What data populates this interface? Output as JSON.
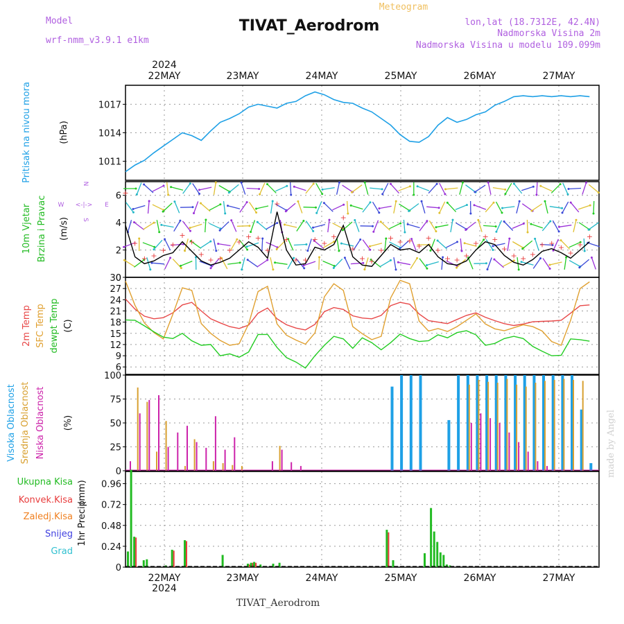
{
  "header": {
    "title": "TIVAT_Aerodrom",
    "meteogram": "Meteogram",
    "model_label": "Model",
    "model_name": "wrf-nmm_v3.9.1 e1km",
    "lonlat": "lon,lat (18.7312E, 42.4N)",
    "elevation": "Nadmorska Visina 2m",
    "model_elevation": "Nadmorska Visina u modelu 109.099m",
    "year_top": "2024",
    "year_bottom": "2024",
    "footer": "TIVAT_Aerodrom",
    "credit": "made by Angel"
  },
  "colors": {
    "pressure": "#1ea0e6",
    "wind_speed": "#000000",
    "gust": "#e83c3c",
    "temp2m": "#e84848",
    "sfc": "#e0a030",
    "dewpt": "#22cc22",
    "cloud_high": "#1ea0e6",
    "cloud_mid": "#d8a030",
    "cloud_low": "#cc22aa",
    "precip_total": "#22bb22",
    "precip_conv": "#e83c3c",
    "label_purple": "#b060e0",
    "label_green": "#22bb22",
    "label_red": "#e83c3c",
    "label_orange": "#f08020",
    "label_blue": "#4040e0",
    "label_cyan": "#30c0d0"
  },
  "dates": [
    "22MAY",
    "23MAY",
    "24MAY",
    "25MAY",
    "26MAY",
    "27MAY"
  ],
  "panel_labels": {
    "pressure": [
      "Pritisak na nivou mora",
      "(hPa)"
    ],
    "wind": [
      "10m Vjetar",
      "Brzina i Pravac",
      "(m/s)"
    ],
    "compass": [
      "N",
      "S",
      "W",
      "E",
      "<-|->"
    ],
    "temp": [
      "2m Temp",
      "SFC Temp",
      "dewpt Temp",
      "(C)"
    ],
    "cloud": [
      "Visoka Oblacnost",
      "Srednja Oblacnost",
      "Niska Oblacnost",
      "(%)"
    ],
    "precip_legend": [
      "Ukupna Kisa",
      "Konvek.Kisa",
      "Zaledj.Kisa",
      "Snijeg",
      "Grad"
    ],
    "precip_axis": [
      "1hr Precip",
      "(mm)"
    ]
  },
  "chart_data": [
    {
      "type": "line",
      "name": "pressure",
      "ylabel": "Pritisak na nivou mora (hPa)",
      "ylim": [
        1009,
        1019
      ],
      "yticks": [
        "1011",
        "1014",
        "1017"
      ],
      "x_hours": [
        0,
        3,
        6,
        9,
        12,
        15,
        18,
        21,
        24,
        27,
        30,
        33,
        36,
        39,
        42,
        45,
        48,
        51,
        54,
        57,
        60,
        63,
        66,
        69,
        72,
        75,
        78,
        81,
        84,
        87,
        90,
        93,
        96,
        99,
        102,
        105,
        108,
        111,
        114,
        117,
        120,
        123,
        126,
        129,
        132,
        135,
        138,
        141,
        144,
        147
      ],
      "series": [
        {
          "values": [
            1009.9,
            1010.6,
            1011.1,
            1011.9,
            1012.6,
            1013.3,
            1014.0,
            1013.7,
            1013.2,
            1014.2,
            1015.1,
            1015.5,
            1016.0,
            1016.7,
            1017.0,
            1016.8,
            1016.6,
            1017.1,
            1017.3,
            1017.9,
            1018.3,
            1018.0,
            1017.5,
            1017.2,
            1017.1,
            1016.6,
            1016.2,
            1015.5,
            1014.8,
            1013.8,
            1013.1,
            1013.0,
            1013.6,
            1014.8,
            1015.6,
            1015.1,
            1015.4,
            1015.9,
            1016.2,
            1016.9,
            1017.3,
            1017.8,
            1017.9,
            1017.8,
            1017.9,
            1017.8,
            1017.9,
            1017.8,
            1017.9,
            1017.8
          ]
        }
      ]
    },
    {
      "type": "line",
      "name": "wind",
      "ylabel": "10m Vjetar Brzina i Pravac (m/s)",
      "ylim": [
        0,
        7
      ],
      "yticks": [
        "0",
        "2",
        "4",
        "6"
      ],
      "x_hours": [
        0,
        3,
        6,
        9,
        12,
        15,
        18,
        21,
        24,
        27,
        30,
        33,
        36,
        39,
        42,
        45,
        48,
        51,
        54,
        57,
        60,
        63,
        66,
        69,
        72,
        75,
        78,
        81,
        84,
        87,
        90,
        93,
        96,
        99,
        102,
        105,
        108,
        111,
        114,
        117,
        120,
        123,
        126,
        129,
        132,
        135,
        138,
        141,
        144,
        147
      ],
      "series": [
        {
          "values": [
            3.8,
            1.5,
            1.0,
            1.2,
            1.6,
            1.8,
            2.6,
            1.9,
            1.2,
            0.9,
            1.1,
            1.4,
            2.0,
            2.6,
            2.2,
            1.4,
            4.8,
            2.0,
            0.9,
            1.0,
            2.2,
            2.0,
            2.4,
            3.8,
            1.5,
            0.9,
            0.8,
            1.6,
            2.4,
            2.0,
            2.1,
            1.8,
            2.4,
            1.5,
            1.0,
            0.9,
            1.2,
            2.0,
            2.6,
            2.4,
            1.6,
            1.1,
            0.9,
            1.3,
            1.9,
            2.1,
            1.8,
            1.4,
            2.0,
            2.6
          ]
        },
        {
          "values": [
            6.2,
            2.5,
            1.4,
            1.6,
            2.0,
            2.4,
            3.1,
            2.6,
            1.7,
            1.3,
            1.4,
            2.0,
            2.6,
            3.0,
            2.9,
            2.0,
            5.4,
            2.8,
            1.3,
            1.3,
            2.8,
            2.5,
            3.0,
            4.4,
            2.1,
            1.4,
            1.2,
            2.0,
            2.9,
            2.6,
            2.7,
            2.3,
            2.9,
            2.0,
            1.4,
            1.3,
            1.6,
            2.5,
            3.0,
            2.8,
            2.1,
            1.6,
            1.4,
            1.7,
            2.4,
            2.5,
            2.2,
            1.8,
            2.4,
            3.0
          ]
        }
      ]
    },
    {
      "type": "line",
      "name": "temperature",
      "ylabel": "Temp (C)",
      "ylim": [
        4,
        30
      ],
      "yticks": [
        "6",
        "9",
        "12",
        "15",
        "18",
        "21",
        "24",
        "27",
        "30"
      ],
      "x_hours": [
        0,
        3,
        6,
        9,
        12,
        15,
        18,
        21,
        24,
        27,
        30,
        33,
        36,
        39,
        42,
        45,
        48,
        51,
        54,
        57,
        60,
        63,
        66,
        69,
        72,
        75,
        78,
        81,
        84,
        87,
        90,
        93,
        96,
        99,
        102,
        105,
        108,
        111,
        114,
        117,
        120,
        123,
        126,
        129,
        132,
        135,
        138,
        141,
        144,
        147
      ],
      "series": [
        {
          "name": "2m Temp",
          "values": [
            24.2,
            21.5,
            19.6,
            18.9,
            19.2,
            20.5,
            22.6,
            23.3,
            21.0,
            18.9,
            17.8,
            16.8,
            16.3,
            17.2,
            20.4,
            21.8,
            18.9,
            17.3,
            16.4,
            15.9,
            17.4,
            20.8,
            21.9,
            21.4,
            19.7,
            19.1,
            18.9,
            19.8,
            22.4,
            23.3,
            22.8,
            20.2,
            18.4,
            18.0,
            17.6,
            18.7,
            19.8,
            20.5,
            19.3,
            18.4,
            17.6,
            17.1,
            17.5,
            18.1,
            18.2,
            18.3,
            18.5,
            20.4,
            22.4,
            22.6
          ]
        },
        {
          "name": "SFC Temp",
          "values": [
            29.0,
            22.5,
            17.8,
            15.2,
            13.5,
            20.1,
            27.2,
            26.5,
            17.6,
            15.0,
            13.1,
            11.8,
            12.2,
            17.5,
            26.2,
            27.6,
            17.5,
            14.5,
            13.2,
            12.1,
            15.1,
            24.8,
            28.3,
            26.5,
            16.8,
            14.9,
            13.3,
            14.2,
            24.5,
            29.2,
            28.3,
            18.3,
            15.6,
            16.3,
            15.5,
            16.8,
            18.5,
            20.2,
            17.5,
            16.2,
            15.7,
            16.5,
            17.3,
            16.8,
            15.6,
            12.8,
            11.8,
            18.5,
            27.0,
            28.8
          ]
        },
        {
          "name": "dewpt Temp",
          "values": [
            18.6,
            18.5,
            17.0,
            15.4,
            14.0,
            13.6,
            15.0,
            13.0,
            11.8,
            12.0,
            9.0,
            9.5,
            8.6,
            10.0,
            14.7,
            14.7,
            11.2,
            8.5,
            7.3,
            5.7,
            9.0,
            11.8,
            14.2,
            13.5,
            11.0,
            13.8,
            12.5,
            10.6,
            12.5,
            14.8,
            13.6,
            12.8,
            13.0,
            14.6,
            13.8,
            15.2,
            15.7,
            14.6,
            11.8,
            12.3,
            13.6,
            14.2,
            13.6,
            11.5,
            10.2,
            9.0,
            9.1,
            13.5,
            13.3,
            12.9
          ]
        }
      ]
    },
    {
      "type": "bar",
      "name": "cloud",
      "ylabel": "Oblacnost (%)",
      "ylim": [
        0,
        100
      ],
      "yticks": [
        "0",
        "25",
        "50",
        "75",
        "100"
      ],
      "x_hours": [
        0,
        3,
        6,
        9,
        12,
        15,
        18,
        21,
        24,
        27,
        30,
        33,
        36,
        39,
        42,
        45,
        48,
        51,
        54,
        57,
        60,
        63,
        66,
        69,
        72,
        75,
        78,
        81,
        84,
        87,
        90,
        93,
        96,
        99,
        102,
        105,
        108,
        111,
        114,
        117,
        120,
        123,
        126,
        129,
        132,
        135,
        138,
        141,
        144,
        147
      ],
      "series": [
        {
          "name": "Visoka Oblacnost",
          "values": [
            0,
            0,
            0,
            0,
            0,
            0,
            0,
            0,
            0,
            0,
            0,
            0,
            0,
            0,
            0,
            0,
            0,
            0,
            0,
            0,
            0,
            0,
            0,
            0,
            0,
            0,
            0,
            0,
            88,
            100,
            100,
            100,
            0,
            0,
            53,
            100,
            100,
            100,
            100,
            100,
            100,
            100,
            100,
            100,
            100,
            100,
            100,
            100,
            64,
            8
          ]
        },
        {
          "name": "Srednja Oblacnost",
          "values": [
            0,
            87,
            72,
            20,
            52,
            0,
            5,
            33,
            0,
            10,
            8,
            6,
            5,
            0,
            0,
            0,
            26,
            0,
            0,
            0,
            0,
            0,
            0,
            0,
            0,
            0,
            0,
            0,
            0,
            0,
            0,
            0,
            0,
            0,
            0,
            0,
            90,
            95,
            93,
            92,
            96,
            90,
            88,
            92,
            94,
            95,
            96,
            95,
            94,
            0
          ]
        },
        {
          "name": "Niska Oblacnost",
          "values": [
            10,
            60,
            74,
            79,
            25,
            40,
            47,
            30,
            24,
            57,
            22,
            35,
            0,
            0,
            0,
            10,
            22,
            9,
            5,
            0,
            0,
            0,
            0,
            0,
            0,
            0,
            0,
            0,
            0,
            0,
            0,
            0,
            0,
            0,
            0,
            0,
            50,
            60,
            55,
            50,
            40,
            30,
            20,
            10,
            5,
            0,
            0,
            0,
            0,
            0
          ]
        }
      ]
    },
    {
      "type": "bar",
      "name": "precip",
      "ylabel": "1hr Precip (mm)",
      "ylim": [
        0,
        1.1
      ],
      "yticks": [
        "0",
        "0.24",
        "0.48",
        "0.72",
        "0.96"
      ],
      "x_hours": [
        0,
        1,
        2,
        5,
        6,
        12,
        14,
        18,
        30,
        38,
        39,
        40,
        42,
        46,
        48,
        82,
        84,
        94,
        96,
        97,
        98,
        99,
        100,
        101,
        102
      ],
      "series": [
        {
          "name": "Ukupna Kisa",
          "values": [
            0.18,
            1.12,
            0.35,
            0.08,
            0.09,
            0.02,
            0.2,
            0.31,
            0.14,
            0.04,
            0.05,
            0.06,
            0.03,
            0.04,
            0.05,
            0.43,
            0.08,
            0.16,
            0.68,
            0.41,
            0.29,
            0.17,
            0.14,
            0.03,
            0.02
          ]
        },
        {
          "name": "Konvek.Kisa",
          "values": [
            0,
            0,
            0.34,
            0,
            0,
            0,
            0.19,
            0.3,
            0,
            0.03,
            0.05,
            0.05,
            0,
            0,
            0,
            0.4,
            0,
            0,
            0,
            0,
            0,
            0,
            0,
            0,
            0
          ]
        }
      ]
    }
  ]
}
